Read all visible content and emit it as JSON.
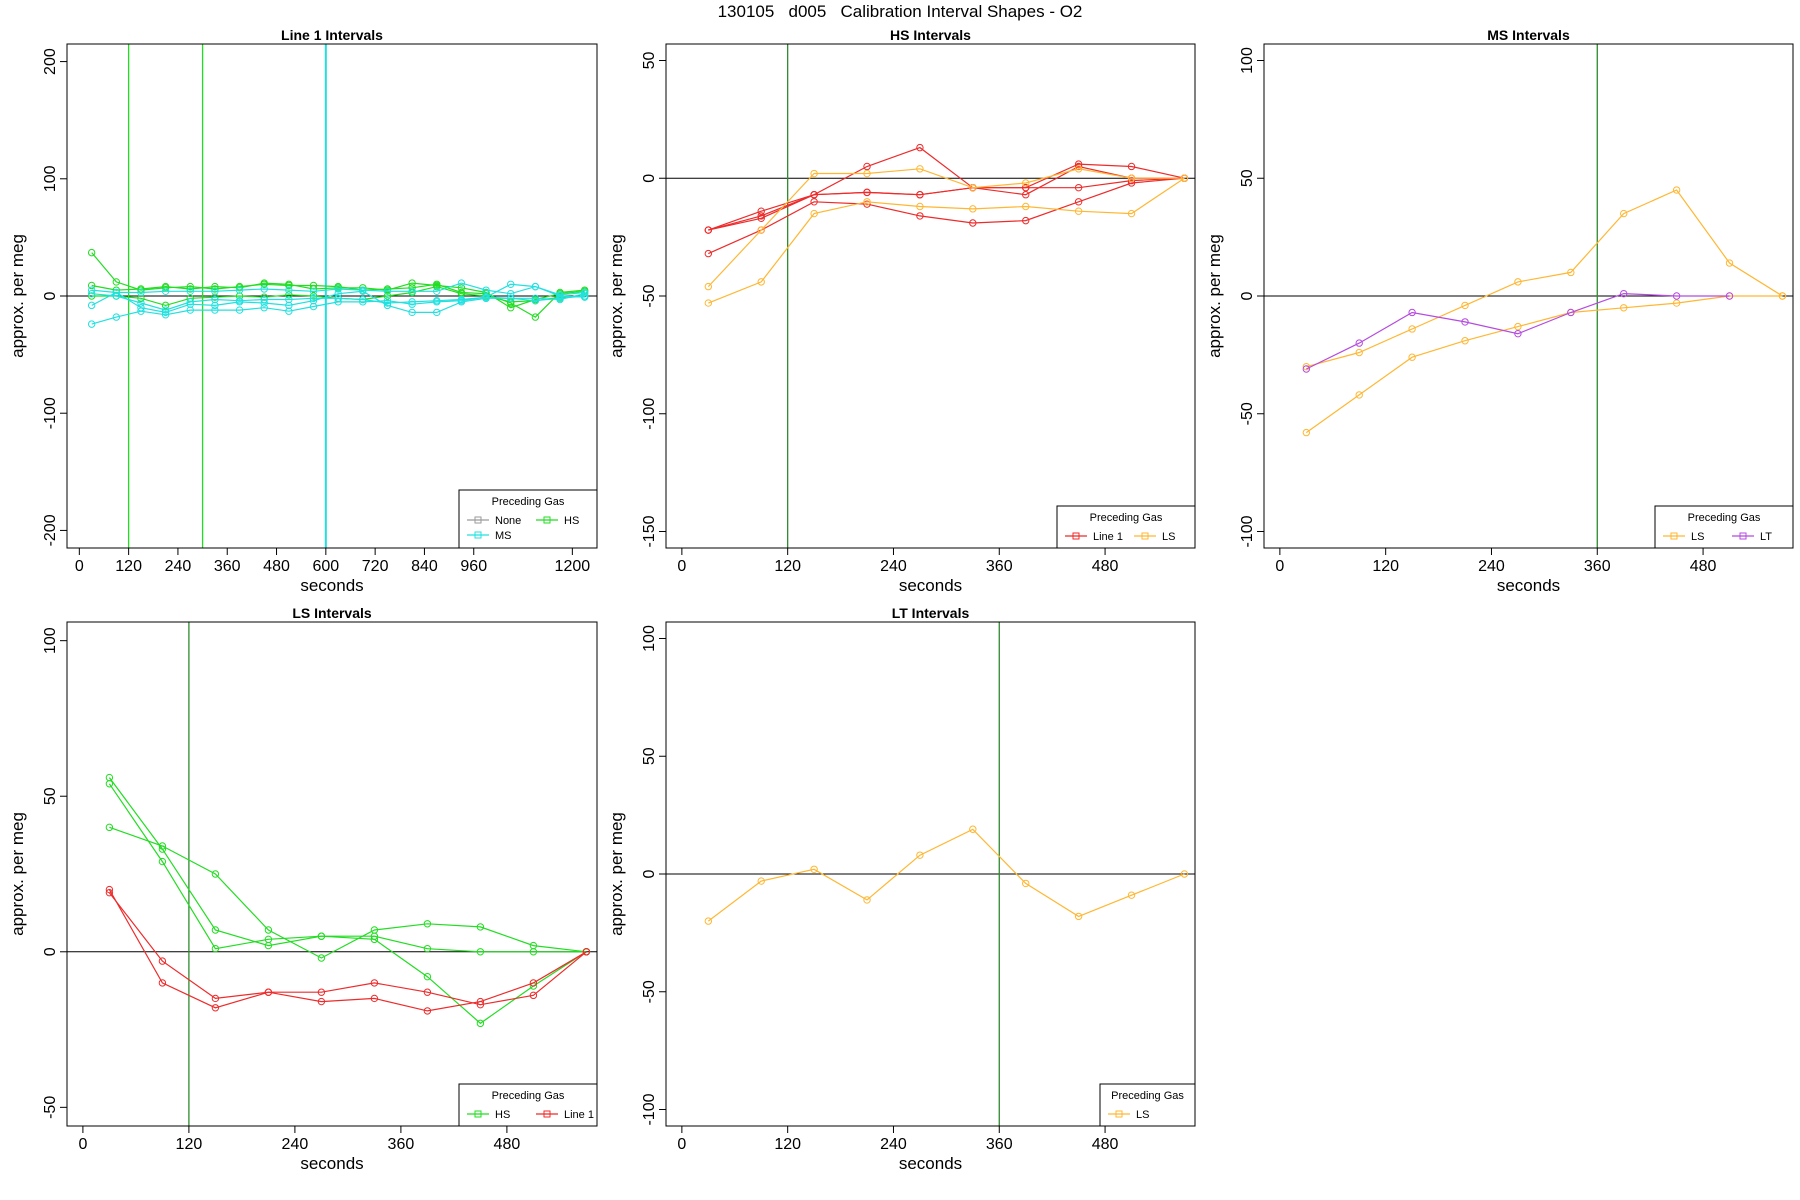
{
  "figure": {
    "title": "130105   d005   Calibration Interval Shapes - O2"
  },
  "colors": {
    "None": "#9a9a9a",
    "HS": "#22dd22",
    "MS": "#22e0e0",
    "LS": "#ffb733",
    "LT": "#b54ae0",
    "Line 1": "#ee2b2b",
    "green_marker": "#2e8b2e",
    "green_bright": "#22dd22",
    "cyan_marker": "#22e0e0"
  },
  "chart_data": [
    {
      "type": "line",
      "title": "Line 1 Intervals",
      "xlabel": "seconds",
      "ylabel": "approx. per meg",
      "xlim": [
        -30,
        1260
      ],
      "ylim": [
        -215,
        215
      ],
      "xticks": [
        0,
        120,
        240,
        360,
        480,
        600,
        720,
        840,
        960,
        1200
      ],
      "yticks": [
        -200,
        -100,
        0,
        100,
        200
      ],
      "hline": 0,
      "vlines": [
        {
          "x": 120,
          "color": "green_bright"
        },
        {
          "x": 300,
          "color": "green_bright"
        },
        {
          "x": 600,
          "color": "cyan_marker"
        }
      ],
      "legend": {
        "title": "Preceding Gas",
        "position": "bottom-right",
        "columns": 2,
        "entries": [
          "None",
          "HS",
          "MS"
        ]
      },
      "series": [
        {
          "name": "HS",
          "x": [
            30,
            90,
            150,
            210,
            270,
            330,
            390,
            450,
            510,
            570,
            630,
            690,
            750,
            810,
            870,
            930,
            990,
            1050,
            1110,
            1170,
            1230
          ],
          "values": [
            37,
            12,
            5,
            7,
            8,
            6,
            8,
            10,
            9,
            9,
            8,
            5,
            6,
            7,
            10,
            3,
            2,
            -6,
            -18,
            3,
            5
          ]
        },
        {
          "name": "HS",
          "x": [
            30,
            90,
            150,
            210,
            270,
            330,
            390,
            450,
            510,
            570,
            630,
            690,
            750,
            810,
            870,
            930,
            990,
            1050,
            1110,
            1170,
            1230
          ],
          "values": [
            9,
            5,
            6,
            8,
            6,
            8,
            7,
            11,
            10,
            6,
            7,
            7,
            5,
            11,
            9,
            7,
            3,
            -10,
            -3,
            2,
            4
          ]
        },
        {
          "name": "HS",
          "x": [
            30,
            90,
            150,
            210,
            270,
            330,
            390,
            450,
            510,
            570,
            630,
            690,
            750,
            810,
            870,
            930,
            990,
            1050,
            1110,
            1170,
            1230
          ],
          "values": [
            0,
            0,
            -2,
            -8,
            -2,
            -1,
            0,
            -1,
            1,
            0,
            -2,
            -3,
            0,
            3,
            8,
            2,
            0,
            -5,
            -4,
            -1,
            0
          ]
        },
        {
          "name": "MS",
          "x": [
            30,
            90,
            150,
            210,
            270,
            330,
            390,
            450,
            510,
            570,
            630,
            690,
            750,
            810,
            870,
            930,
            990,
            1050,
            1110,
            1170,
            1230
          ],
          "values": [
            -24,
            -18,
            -13,
            -16,
            -12,
            -12,
            -12,
            -10,
            -13,
            -9,
            -5,
            -5,
            -4,
            -7,
            -5,
            -4,
            -1,
            10,
            8,
            0,
            -1
          ]
        },
        {
          "name": "MS",
          "x": [
            30,
            90,
            150,
            210,
            270,
            330,
            390,
            450,
            510,
            570,
            630,
            690,
            750,
            810,
            870,
            930,
            990,
            1050,
            1110,
            1170,
            1230
          ],
          "values": [
            -8,
            3,
            -10,
            -14,
            -7,
            -8,
            -5,
            -6,
            -8,
            -4,
            2,
            4,
            -8,
            -14,
            -14,
            -5,
            -2,
            -2,
            -2,
            -3,
            2
          ]
        },
        {
          "name": "MS",
          "x": [
            30,
            90,
            150,
            210,
            270,
            330,
            390,
            450,
            510,
            570,
            630,
            690,
            750,
            810,
            870,
            930,
            990,
            1050,
            1110,
            1170,
            1230
          ],
          "values": [
            2,
            0,
            -6,
            -12,
            -5,
            -3,
            -4,
            -3,
            -3,
            -2,
            -2,
            -3,
            -6,
            -5,
            -4,
            -3,
            -1,
            -2,
            -4,
            -2,
            0
          ]
        },
        {
          "name": "MS",
          "x": [
            30,
            90,
            150,
            210,
            270,
            330,
            390,
            450,
            510,
            570,
            630,
            690,
            750,
            810,
            870,
            930,
            990,
            1050,
            1110,
            1170,
            1230
          ],
          "values": [
            5,
            3,
            3,
            4,
            4,
            4,
            5,
            6,
            5,
            4,
            6,
            5,
            4,
            4,
            4,
            11,
            5,
            2,
            8,
            1,
            3
          ]
        }
      ]
    },
    {
      "type": "line",
      "title": "HS Intervals",
      "xlabel": "seconds",
      "ylabel": "approx. per meg",
      "xlim": [
        -18,
        582
      ],
      "ylim": [
        -157,
        57
      ],
      "xticks": [
        0,
        120,
        240,
        360,
        480
      ],
      "yticks": [
        -150,
        -100,
        -50,
        0,
        50
      ],
      "hline": 0,
      "vlines": [
        {
          "x": 120,
          "color": "green_marker"
        }
      ],
      "legend": {
        "title": "Preceding Gas",
        "position": "bottom-right",
        "columns": 2,
        "entries": [
          "Line 1",
          "LS"
        ]
      },
      "series": [
        {
          "name": "Line 1",
          "x": [
            30,
            90,
            150,
            210,
            270,
            330,
            390,
            450,
            510,
            570
          ],
          "values": [
            -22,
            -14,
            -7,
            5,
            13,
            -4,
            -4,
            6,
            5,
            0
          ]
        },
        {
          "name": "Line 1",
          "x": [
            30,
            90,
            150,
            210,
            270,
            330,
            390,
            450,
            510,
            570
          ],
          "values": [
            -22,
            -17,
            -7,
            -6,
            -7,
            -4,
            -7,
            5,
            0,
            0
          ]
        },
        {
          "name": "Line 1",
          "x": [
            30,
            90,
            150,
            210,
            270,
            330,
            390,
            450,
            510,
            570
          ],
          "values": [
            -32,
            -22,
            -10,
            -11,
            -16,
            -19,
            -18,
            -10,
            -2,
            0
          ]
        },
        {
          "name": "Line 1",
          "x": [
            30,
            90,
            150,
            210,
            270,
            330,
            390,
            450,
            510,
            570
          ],
          "values": [
            -22,
            -16,
            -7,
            -6,
            -7,
            -4,
            -4,
            -4,
            -1,
            0
          ]
        },
        {
          "name": "LS",
          "x": [
            30,
            90,
            150,
            210,
            270,
            330,
            390,
            450,
            510,
            570
          ],
          "values": [
            -46,
            -22,
            2,
            2,
            4,
            -4,
            -2,
            4,
            0,
            0
          ]
        },
        {
          "name": "LS",
          "x": [
            30,
            90,
            150,
            210,
            270,
            330,
            390,
            450,
            510,
            570
          ],
          "values": [
            -53,
            -44,
            -15,
            -10,
            -12,
            -13,
            -12,
            -14,
            -15,
            0
          ]
        }
      ]
    },
    {
      "type": "line",
      "title": "MS Intervals",
      "xlabel": "seconds",
      "ylabel": "approx. per meg",
      "xlim": [
        -18,
        582
      ],
      "ylim": [
        -107,
        107
      ],
      "xticks": [
        0,
        120,
        240,
        360,
        480
      ],
      "yticks": [
        -100,
        -50,
        0,
        50,
        100
      ],
      "hline": 0,
      "vlines": [
        {
          "x": 360,
          "color": "green_marker"
        }
      ],
      "legend": {
        "title": "Preceding Gas",
        "position": "bottom-right",
        "columns": 2,
        "entries": [
          "LS",
          "LT"
        ]
      },
      "series": [
        {
          "name": "LS",
          "x": [
            30,
            90,
            150,
            210,
            270,
            330,
            390,
            450,
            510,
            570
          ],
          "values": [
            -58,
            -42,
            -26,
            -19,
            -13,
            -7,
            -5,
            -3,
            0,
            0
          ]
        },
        {
          "name": "LS",
          "x": [
            30,
            90,
            150,
            210,
            270,
            330,
            390,
            450,
            510,
            570
          ],
          "values": [
            -30,
            -24,
            -14,
            -4,
            6,
            10,
            35,
            45,
            14,
            0
          ]
        },
        {
          "name": "LT",
          "x": [
            30,
            90,
            150,
            210,
            270,
            330,
            390,
            450,
            510
          ],
          "values": [
            -31,
            -20,
            -7,
            -11,
            -16,
            -7,
            1,
            0,
            0
          ]
        }
      ]
    },
    {
      "type": "line",
      "title": "LS Intervals",
      "xlabel": "seconds",
      "ylabel": "approx. per meg",
      "xlim": [
        -18,
        582
      ],
      "ylim": [
        -56,
        106
      ],
      "xticks": [
        0,
        120,
        240,
        360,
        480
      ],
      "yticks": [
        -50,
        0,
        50,
        100
      ],
      "hline": 0,
      "vlines": [
        {
          "x": 120,
          "color": "green_marker"
        }
      ],
      "legend": {
        "title": "Preceding Gas",
        "position": "bottom-right",
        "columns": 2,
        "entries": [
          "HS",
          "Line 1"
        ]
      },
      "series": [
        {
          "name": "HS",
          "x": [
            30,
            90,
            150,
            210,
            270,
            330,
            390,
            450,
            510,
            570
          ],
          "values": [
            56,
            33,
            7,
            2,
            5,
            4,
            -8,
            -23,
            -11,
            0
          ]
        },
        {
          "name": "HS",
          "x": [
            30,
            90,
            150,
            210,
            270,
            330,
            390,
            450,
            510,
            570
          ],
          "values": [
            54,
            29,
            1,
            4,
            5,
            5,
            1,
            0,
            0,
            0
          ]
        },
        {
          "name": "HS",
          "x": [
            30,
            90,
            150,
            210,
            270,
            330,
            390,
            450,
            510,
            570
          ],
          "values": [
            40,
            34,
            25,
            7,
            -2,
            7,
            9,
            8,
            2,
            0
          ]
        },
        {
          "name": "Line 1",
          "x": [
            30,
            90,
            150,
            210,
            270,
            330,
            390,
            450,
            510,
            570
          ],
          "values": [
            20,
            -10,
            -18,
            -13,
            -13,
            -10,
            -13,
            -17,
            -14,
            0
          ]
        },
        {
          "name": "Line 1",
          "x": [
            30,
            90,
            150,
            210,
            270,
            330,
            390,
            450,
            510,
            570
          ],
          "values": [
            19,
            -3,
            -15,
            -13,
            -16,
            -15,
            -19,
            -16,
            -10,
            0
          ]
        }
      ]
    },
    {
      "type": "line",
      "title": "LT Intervals",
      "xlabel": "seconds",
      "ylabel": "approx. per meg",
      "xlim": [
        -18,
        582
      ],
      "ylim": [
        -107,
        107
      ],
      "xticks": [
        0,
        120,
        240,
        360,
        480
      ],
      "yticks": [
        -100,
        -50,
        0,
        50,
        100
      ],
      "hline": 0,
      "vlines": [
        {
          "x": 360,
          "color": "green_marker"
        }
      ],
      "legend": {
        "title": "Preceding Gas",
        "position": "bottom-right",
        "columns": 1,
        "entries": [
          "LS"
        ]
      },
      "series": [
        {
          "name": "LS",
          "x": [
            30,
            90,
            150,
            210,
            270,
            330,
            390,
            450,
            510,
            570
          ],
          "values": [
            -20,
            -3,
            2,
            -11,
            8,
            19,
            -4,
            -18,
            -9,
            0
          ]
        }
      ]
    }
  ]
}
